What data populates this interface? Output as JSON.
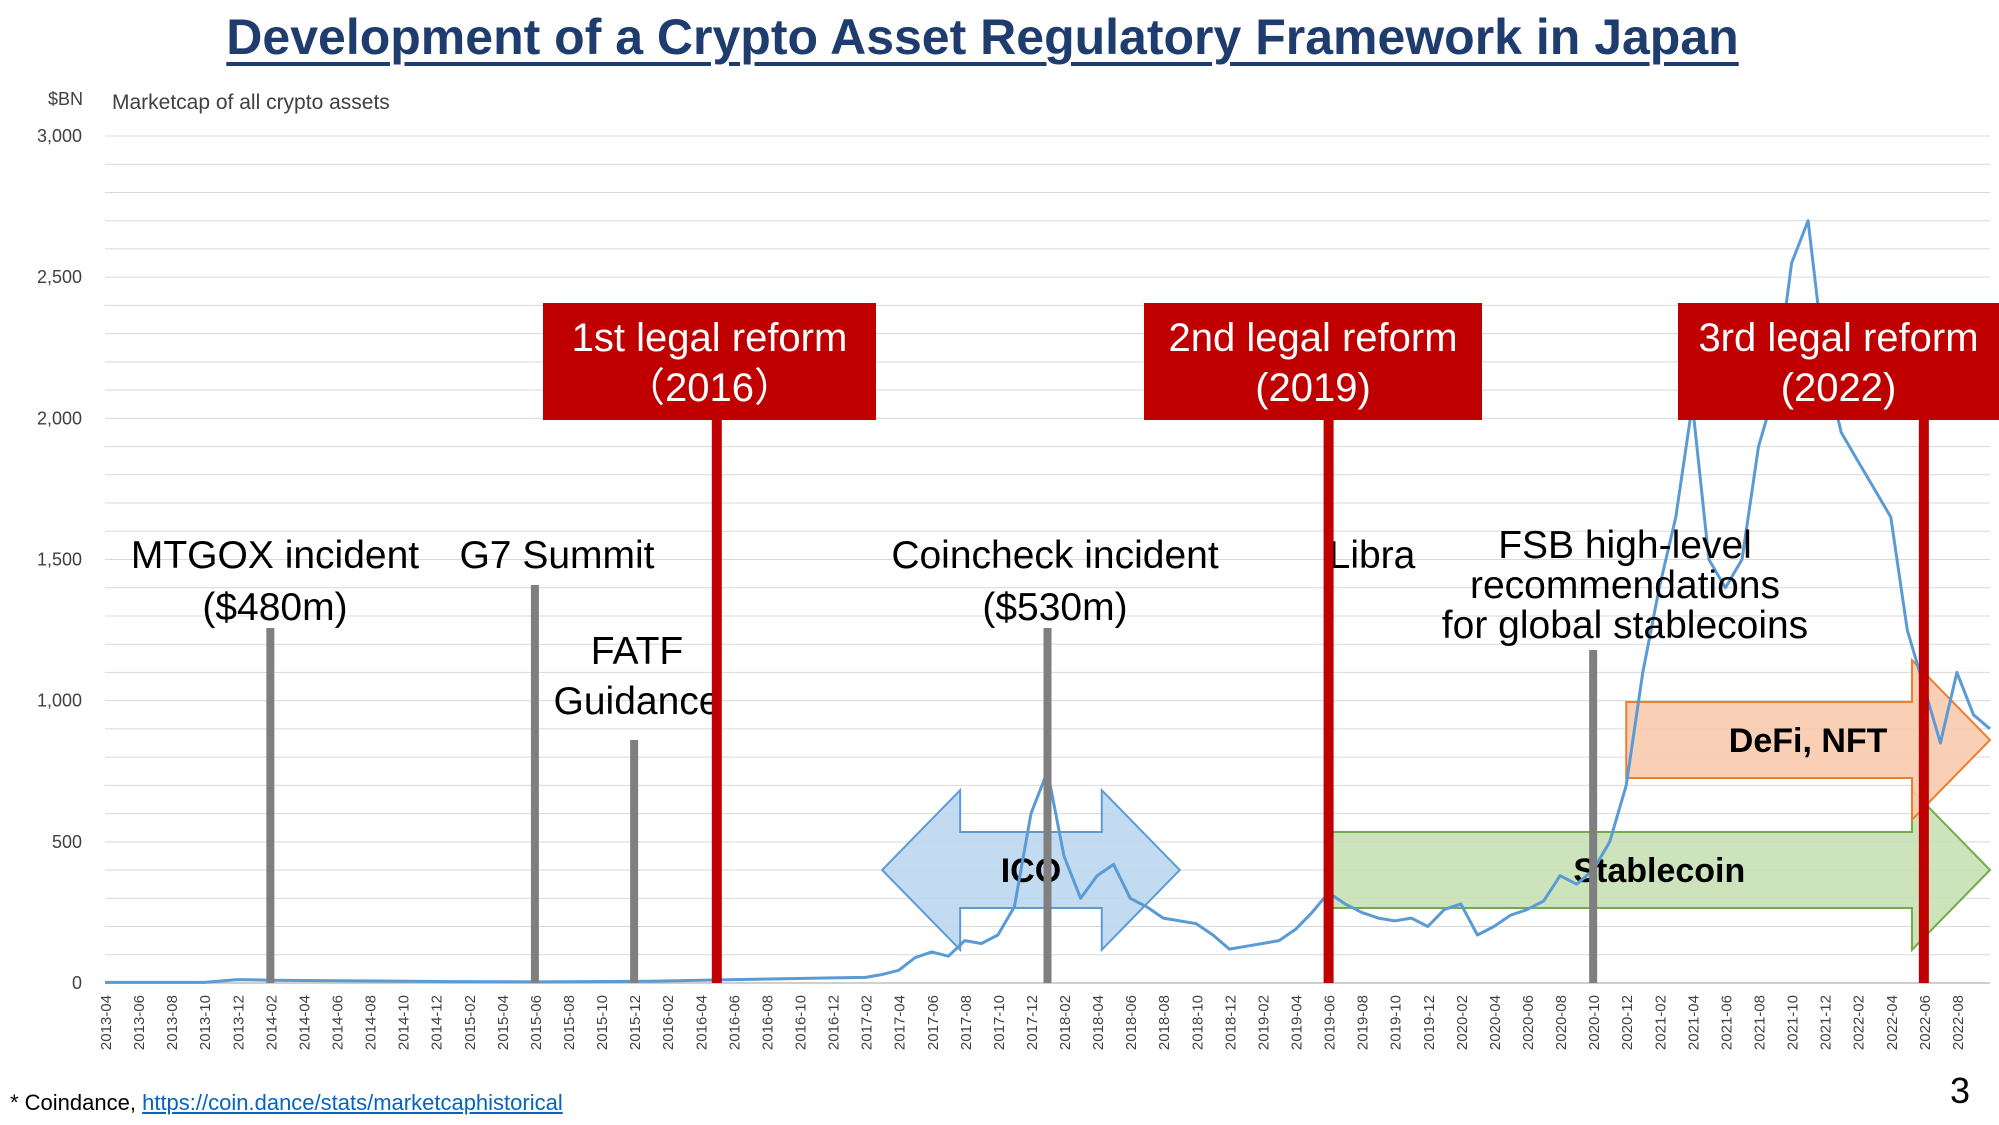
{
  "title": "Development of a Crypto Asset Regulatory Framework in Japan",
  "footnote": {
    "prefix": "* Coindance, ",
    "link_text": "https://coin.dance/stats/marketcaphistorical"
  },
  "page_number": "3",
  "colors": {
    "line": "#5b9bd5",
    "grid": "#d9d9d9",
    "event_bar": "#7f7f7f",
    "reform": "#c00000",
    "ico_fill": "#bdd7ee",
    "ico_stroke": "#5b9bd5",
    "stable_fill": "#c6e0b4",
    "stable_stroke": "#70ad47",
    "defi_fill": "#f8cbad",
    "defi_stroke": "#ed7d31"
  },
  "chart_data": {
    "type": "line",
    "ylabel": "$BN",
    "subtitle": "Marketcap of all crypto assets",
    "ylim": [
      0,
      3000
    ],
    "yticks": [
      0,
      500,
      1000,
      1500,
      2000,
      2500,
      3000
    ],
    "ytick_labels": [
      "0",
      "500",
      "1,000",
      "1,500",
      "2,000",
      "2,500",
      "3,000"
    ],
    "xlim": [
      "2013-04",
      "2022-10"
    ],
    "grid": true,
    "xtick_labels": [
      "2013-04",
      "2013-06",
      "2013-08",
      "2013-10",
      "2013-12",
      "2014-02",
      "2014-04",
      "2014-06",
      "2014-08",
      "2014-10",
      "2014-12",
      "2015-02",
      "2015-04",
      "2015-06",
      "2015-08",
      "2015-10",
      "2015-12",
      "2016-02",
      "2016-04",
      "2016-06",
      "2016-08",
      "2016-10",
      "2016-12",
      "2017-02",
      "2017-04",
      "2017-06",
      "2017-08",
      "2017-10",
      "2017-12",
      "2018-02",
      "2018-04",
      "2018-06",
      "2018-08",
      "2018-10",
      "2018-12",
      "2019-02",
      "2019-04",
      "2019-06",
      "2019-08",
      "2019-10",
      "2019-12",
      "2020-02",
      "2020-04",
      "2020-06",
      "2020-08",
      "2020-10",
      "2020-12",
      "2021-02",
      "2021-04",
      "2021-06",
      "2021-08",
      "2021-10",
      "2021-12",
      "2022-02",
      "2022-04",
      "2022-06",
      "2022-08"
    ],
    "series": [
      {
        "x": [
          "2013-04",
          "2013-10",
          "2013-12",
          "2014-02",
          "2014-06",
          "2015-01",
          "2015-06",
          "2016-01",
          "2016-06",
          "2016-12",
          "2017-02",
          "2017-03",
          "2017-04",
          "2017-05",
          "2017-06",
          "2017-07",
          "2017-08",
          "2017-09",
          "2017-10",
          "2017-11",
          "2017-12",
          "2018-01",
          "2018-02",
          "2018-03",
          "2018-04",
          "2018-05",
          "2018-06",
          "2018-07",
          "2018-08",
          "2018-09",
          "2018-10",
          "2018-11",
          "2018-12",
          "2019-01",
          "2019-02",
          "2019-03",
          "2019-04",
          "2019-05",
          "2019-06",
          "2019-07",
          "2019-08",
          "2019-09",
          "2019-10",
          "2019-11",
          "2019-12",
          "2020-01",
          "2020-02",
          "2020-03",
          "2020-04",
          "2020-05",
          "2020-06",
          "2020-07",
          "2020-08",
          "2020-09",
          "2020-10",
          "2020-11",
          "2020-12",
          "2021-01",
          "2021-02",
          "2021-03",
          "2021-04",
          "2021-05",
          "2021-06",
          "2021-07",
          "2021-08",
          "2021-09",
          "2021-10",
          "2021-11",
          "2021-12",
          "2022-01",
          "2022-02",
          "2022-03",
          "2022-04",
          "2022-05",
          "2022-06",
          "2022-07",
          "2022-08",
          "2022-09",
          "2022-10"
        ],
        "values": [
          2,
          2,
          12,
          10,
          8,
          5,
          4,
          6,
          12,
          18,
          20,
          30,
          45,
          90,
          110,
          95,
          150,
          140,
          170,
          270,
          600,
          750,
          450,
          300,
          380,
          420,
          300,
          270,
          230,
          220,
          210,
          170,
          120,
          130,
          140,
          150,
          190,
          250,
          320,
          280,
          250,
          230,
          220,
          230,
          200,
          260,
          280,
          170,
          200,
          240,
          260,
          290,
          380,
          350,
          400,
          500,
          700,
          1100,
          1400,
          1650,
          2050,
          1500,
          1400,
          1500,
          1900,
          2100,
          2550,
          2700,
          2200,
          1950,
          1850,
          1750,
          1650,
          1250,
          1050,
          850,
          1100,
          950,
          900
        ]
      }
    ],
    "events": [
      {
        "label_lines": [
          "MTGOX incident",
          "($480m)"
        ],
        "date": "2014-02"
      },
      {
        "label_lines": [
          "G7 Summit"
        ],
        "date": "2015-06"
      },
      {
        "label_lines": [
          "FATF",
          "Guidance"
        ],
        "date": "2015-12"
      },
      {
        "label_lines": [
          "Coincheck incident",
          "($530m)"
        ],
        "date": "2018-01"
      },
      {
        "label_lines": [
          "Libra"
        ],
        "date": "2019-06"
      },
      {
        "label_lines": [
          "FSB high-level",
          "recommendations",
          "for global stablecoins"
        ],
        "date": "2020-10"
      }
    ],
    "reforms": [
      {
        "label_lines": [
          "1st legal reform",
          "（2016）"
        ],
        "date": "2016-05"
      },
      {
        "label_lines": [
          "2nd legal reform",
          "(2019)"
        ],
        "date": "2019-06"
      },
      {
        "label_lines": [
          "3rd legal reform",
          "(2022)"
        ],
        "date": "2022-06"
      }
    ],
    "periods": [
      {
        "label": "ICO",
        "start": "2017-03",
        "end": "2018-09"
      },
      {
        "label": "Stablecoin",
        "start": "2019-06",
        "end": "2022-10"
      },
      {
        "label": "DeFi, NFT",
        "start": "2020-12",
        "end": "2022-10"
      }
    ]
  }
}
